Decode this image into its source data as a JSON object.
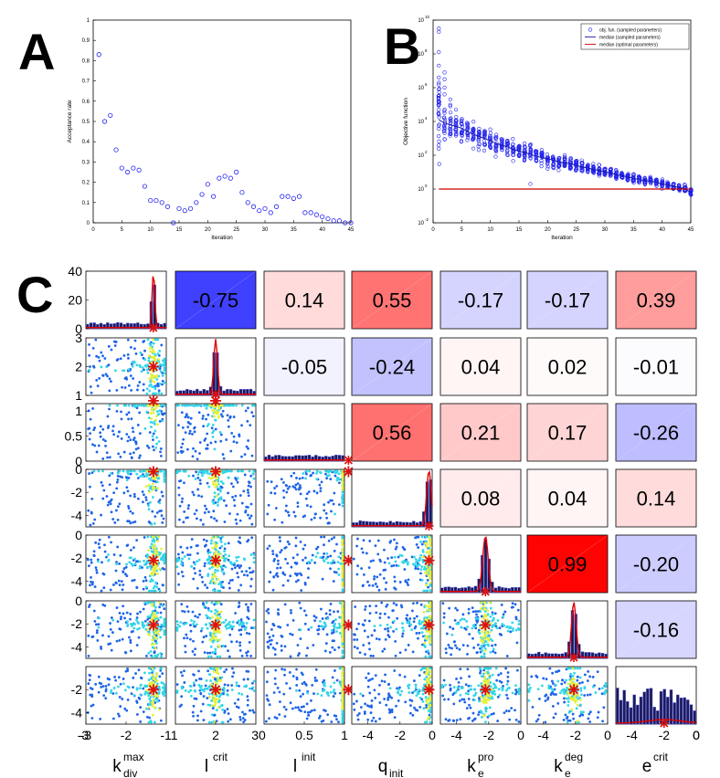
{
  "panel_labels": {
    "a": "A",
    "b": "B",
    "c": "C"
  },
  "colors": {
    "blue_marker": "#2222ee",
    "red_line": "#cc0000",
    "dark_blue_line": "#1a1aaa",
    "hist_bar": "#1b1b55",
    "hist_edge": "#6f6fff",
    "scatter_blue": "#1e64e8",
    "scatter_cyan": "#33d6e8",
    "scatter_yellow": "#e8f03c",
    "star_red": "#dd1111"
  },
  "chart_data": [
    {
      "id": "A",
      "type": "scatter",
      "xlabel": "Iteration",
      "ylabel": "Acceptance rate",
      "xlim": [
        0,
        45
      ],
      "ylim": [
        0,
        1
      ],
      "xticks": [
        "0",
        "5",
        "10",
        "15",
        "20",
        "25",
        "30",
        "35",
        "40",
        "45"
      ],
      "yticks": [
        "0",
        "0.1",
        "0.2",
        "0.3",
        "0.4",
        "0.5",
        "0.6",
        "0.7",
        "0.8",
        "0.9",
        "1"
      ],
      "x": [
        1,
        2,
        3,
        4,
        5,
        6,
        7,
        8,
        9,
        10,
        11,
        12,
        13,
        14,
        15,
        16,
        17,
        18,
        19,
        20,
        21,
        22,
        23,
        24,
        25,
        26,
        27,
        28,
        29,
        30,
        31,
        32,
        33,
        34,
        35,
        36,
        37,
        38,
        39,
        40,
        41,
        42,
        43,
        44,
        45
      ],
      "y": [
        0.83,
        0.5,
        0.53,
        0.36,
        0.27,
        0.25,
        0.27,
        0.26,
        0.18,
        0.11,
        0.11,
        0.1,
        0.08,
        0.0,
        0.07,
        0.06,
        0.07,
        0.1,
        0.14,
        0.19,
        0.13,
        0.22,
        0.23,
        0.22,
        0.25,
        0.15,
        0.1,
        0.08,
        0.06,
        0.07,
        0.05,
        0.08,
        0.13,
        0.13,
        0.12,
        0.13,
        0.05,
        0.05,
        0.04,
        0.03,
        0.02,
        0.01,
        0.01,
        0.0,
        0.0
      ]
    },
    {
      "id": "B",
      "type": "scatter",
      "xlabel": "Iteration",
      "ylabel": "Objective function",
      "xlim": [
        0,
        45
      ],
      "ylim_log10": [
        -2,
        10
      ],
      "xticks": [
        "0",
        "5",
        "10",
        "15",
        "20",
        "25",
        "30",
        "35",
        "40",
        "45"
      ],
      "ytick_exponents": [
        "-2",
        "0",
        "2",
        "4",
        "6",
        "8",
        "10"
      ],
      "ytick_base": "10",
      "legend": [
        "obj. fun. (sampled parameters)",
        "median (sampled parameters)",
        "median (optimal parameters)"
      ],
      "legend_position": "top-right",
      "median_sampled_log10": [
        4.1,
        3.9,
        3.8,
        3.7,
        3.6,
        3.4,
        3.25,
        3.1,
        3.0,
        2.85,
        2.7,
        2.6,
        2.5,
        2.35,
        2.25,
        2.15,
        2.05,
        1.95,
        1.85,
        1.8,
        1.7,
        1.6,
        1.55,
        1.5,
        1.4,
        1.3,
        1.25,
        1.15,
        1.1,
        1.0,
        0.95,
        0.85,
        0.8,
        0.7,
        0.65,
        0.55,
        0.5,
        0.45,
        0.4,
        0.3,
        0.25,
        0.15,
        0.1,
        0.0,
        -0.2
      ],
      "median_optimal_log10": 0.0,
      "spread_log10": [
        4.0,
        1.8,
        1.2,
        1.1,
        1.0,
        1.0,
        0.9,
        0.9,
        0.8,
        0.8,
        0.8,
        0.7,
        0.7,
        0.7,
        0.7,
        0.7,
        0.6,
        0.6,
        0.6,
        0.6,
        0.5,
        0.5,
        0.5,
        0.5,
        0.5,
        0.5,
        0.4,
        0.4,
        0.4,
        0.4,
        0.4,
        0.3,
        0.3,
        0.3,
        0.3,
        0.3,
        0.3,
        0.3,
        0.3,
        0.3,
        0.3,
        0.3,
        0.3,
        0.3,
        0.3
      ],
      "outliers": [
        [
          1,
          9.5
        ],
        [
          1,
          9.3
        ],
        [
          1,
          8.1
        ],
        [
          1,
          7.3
        ],
        [
          1,
          6.6
        ],
        [
          1,
          6.3
        ],
        [
          1,
          5.9
        ],
        [
          1,
          5.4
        ],
        [
          1,
          4.7
        ],
        [
          1,
          4.4
        ],
        [
          2,
          6.9
        ],
        [
          2,
          6.5
        ],
        [
          2,
          6.0
        ],
        [
          2,
          5.6
        ],
        [
          3,
          5.3
        ],
        [
          3,
          4.9
        ],
        [
          4,
          4.7
        ],
        [
          17,
          0.3
        ]
      ]
    },
    {
      "id": "C",
      "type": "matrix",
      "parameters": [
        {
          "base": "k",
          "sup": "max",
          "sub": "div"
        },
        {
          "base": "l",
          "sup": "crit",
          "sub": ""
        },
        {
          "base": "l",
          "sup": "init",
          "sub": ""
        },
        {
          "base": "q",
          "sup": "",
          "sub": "init"
        },
        {
          "base": "k",
          "sup": "pro",
          "sub": "e"
        },
        {
          "base": "k",
          "sup": "deg",
          "sub": "e"
        },
        {
          "base": "e",
          "sup": "crit",
          "sub": ""
        }
      ],
      "ranges": [
        [
          -3,
          -1
        ],
        [
          1,
          3
        ],
        [
          0,
          1
        ],
        [
          -5,
          0
        ],
        [
          -5,
          0
        ],
        [
          -5,
          0
        ],
        [
          -5,
          0
        ]
      ],
      "x_tick_values": [
        [
          -3,
          -2
        ],
        [
          2
        ],
        [
          0.5,
          1
        ],
        [
          -4,
          -2,
          0
        ],
        [
          -4,
          -2,
          0
        ],
        [
          -4,
          -2,
          0
        ],
        [
          -4,
          -2,
          0
        ]
      ],
      "x_tick_labels": [
        [
          "-3",
          "-2"
        ],
        [
          "2"
        ],
        [
          "0.5",
          "1"
        ],
        [
          "-4",
          "-2",
          "0"
        ],
        [
          "-4",
          "-2",
          "0"
        ],
        [
          "-4",
          "-2",
          "0"
        ],
        [
          "-4",
          "-2",
          "0"
        ]
      ],
      "x_end_labels": {
        "left": "-3",
        "after_col0": "-11",
        "after_col1": "30",
        "right": "0"
      },
      "y_tick_values": [
        [
          0,
          20,
          40
        ],
        [
          1,
          2,
          3
        ],
        [
          0,
          0.5,
          1
        ],
        [
          -4,
          -2,
          0
        ],
        [
          -4,
          -2,
          0
        ],
        [
          -4,
          -2,
          0
        ],
        [
          -4,
          -2
        ]
      ],
      "y_tick_labels": [
        [
          "0",
          "20",
          "40"
        ],
        [
          "1",
          "2",
          "3"
        ],
        [
          "0",
          "0.5",
          "1"
        ],
        [
          "-4",
          "-2",
          "0"
        ],
        [
          "-4",
          "-2",
          "0"
        ],
        [
          "-4",
          "-2",
          "0"
        ],
        [
          "-4",
          "-2"
        ]
      ],
      "optimum": [
        -1.32,
        2.0,
        1.05,
        -0.2,
        -2.2,
        -2.1,
        -2.0
      ],
      "correlations": [
        [
          null,
          -0.75,
          0.14,
          0.55,
          -0.17,
          -0.17,
          0.39
        ],
        [
          null,
          null,
          -0.05,
          -0.24,
          0.04,
          0.02,
          -0.01
        ],
        [
          null,
          null,
          null,
          0.56,
          0.21,
          0.17,
          -0.26
        ],
        [
          null,
          null,
          null,
          null,
          0.08,
          0.04,
          0.14
        ],
        [
          null,
          null,
          null,
          null,
          null,
          0.99,
          -0.2
        ],
        [
          null,
          null,
          null,
          null,
          null,
          null,
          -0.16
        ]
      ],
      "correlation_labels": [
        [
          "",
          "-0.75",
          "0.14",
          "0.55",
          "-0.17",
          "-0.17",
          "0.39"
        ],
        [
          "",
          "",
          "-0.05",
          "-0.24",
          "0.04",
          "0.02",
          "-0.01"
        ],
        [
          "",
          "",
          "",
          "0.56",
          "0.21",
          "0.17",
          "-0.26"
        ],
        [
          "",
          "",
          "",
          "",
          "0.08",
          "0.04",
          "0.14"
        ],
        [
          "",
          "",
          "",
          "",
          "",
          "0.99",
          "-0.20"
        ],
        [
          "",
          "",
          "",
          "",
          "",
          "",
          "-0.16"
        ]
      ]
    }
  ]
}
